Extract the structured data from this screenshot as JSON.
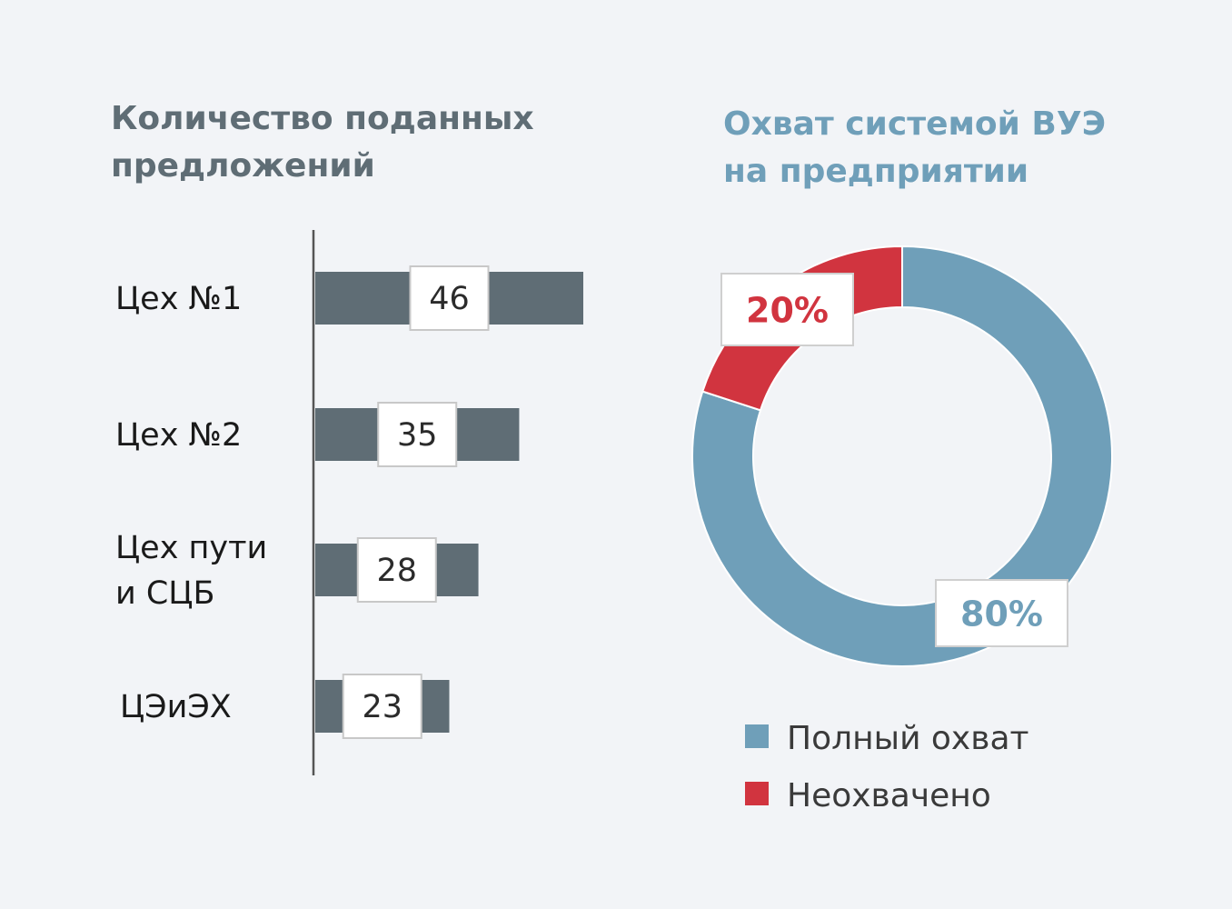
{
  "chart_data": [
    {
      "type": "bar",
      "orientation": "horizontal",
      "title": [
        "Количество поданных",
        "предложений"
      ],
      "categories": [
        [
          "Цех №1"
        ],
        [
          "Цех №2"
        ],
        [
          "Цех пути",
          "и СЦБ"
        ],
        [
          "ЦЭиЭХ"
        ]
      ],
      "values": [
        46,
        35,
        28,
        23
      ],
      "data_labels": [
        "46",
        "35",
        "28",
        "23"
      ],
      "xlim": [
        0,
        46
      ],
      "colors": {
        "bar": "#5f6d75",
        "title": "#5f6d75"
      }
    },
    {
      "type": "pie",
      "variant": "donut",
      "title": [
        "Охват системой ВУЭ",
        "на предприятии"
      ],
      "slices": [
        {
          "name": "Полный охват",
          "value": 80,
          "label": "80%",
          "color": "#6f9fb9"
        },
        {
          "name": "Неохвачено",
          "value": 20,
          "label": "20%",
          "color": "#d1343f"
        }
      ],
      "legend_position": "bottom",
      "colors": {
        "title": "#6f9fb9"
      }
    }
  ]
}
